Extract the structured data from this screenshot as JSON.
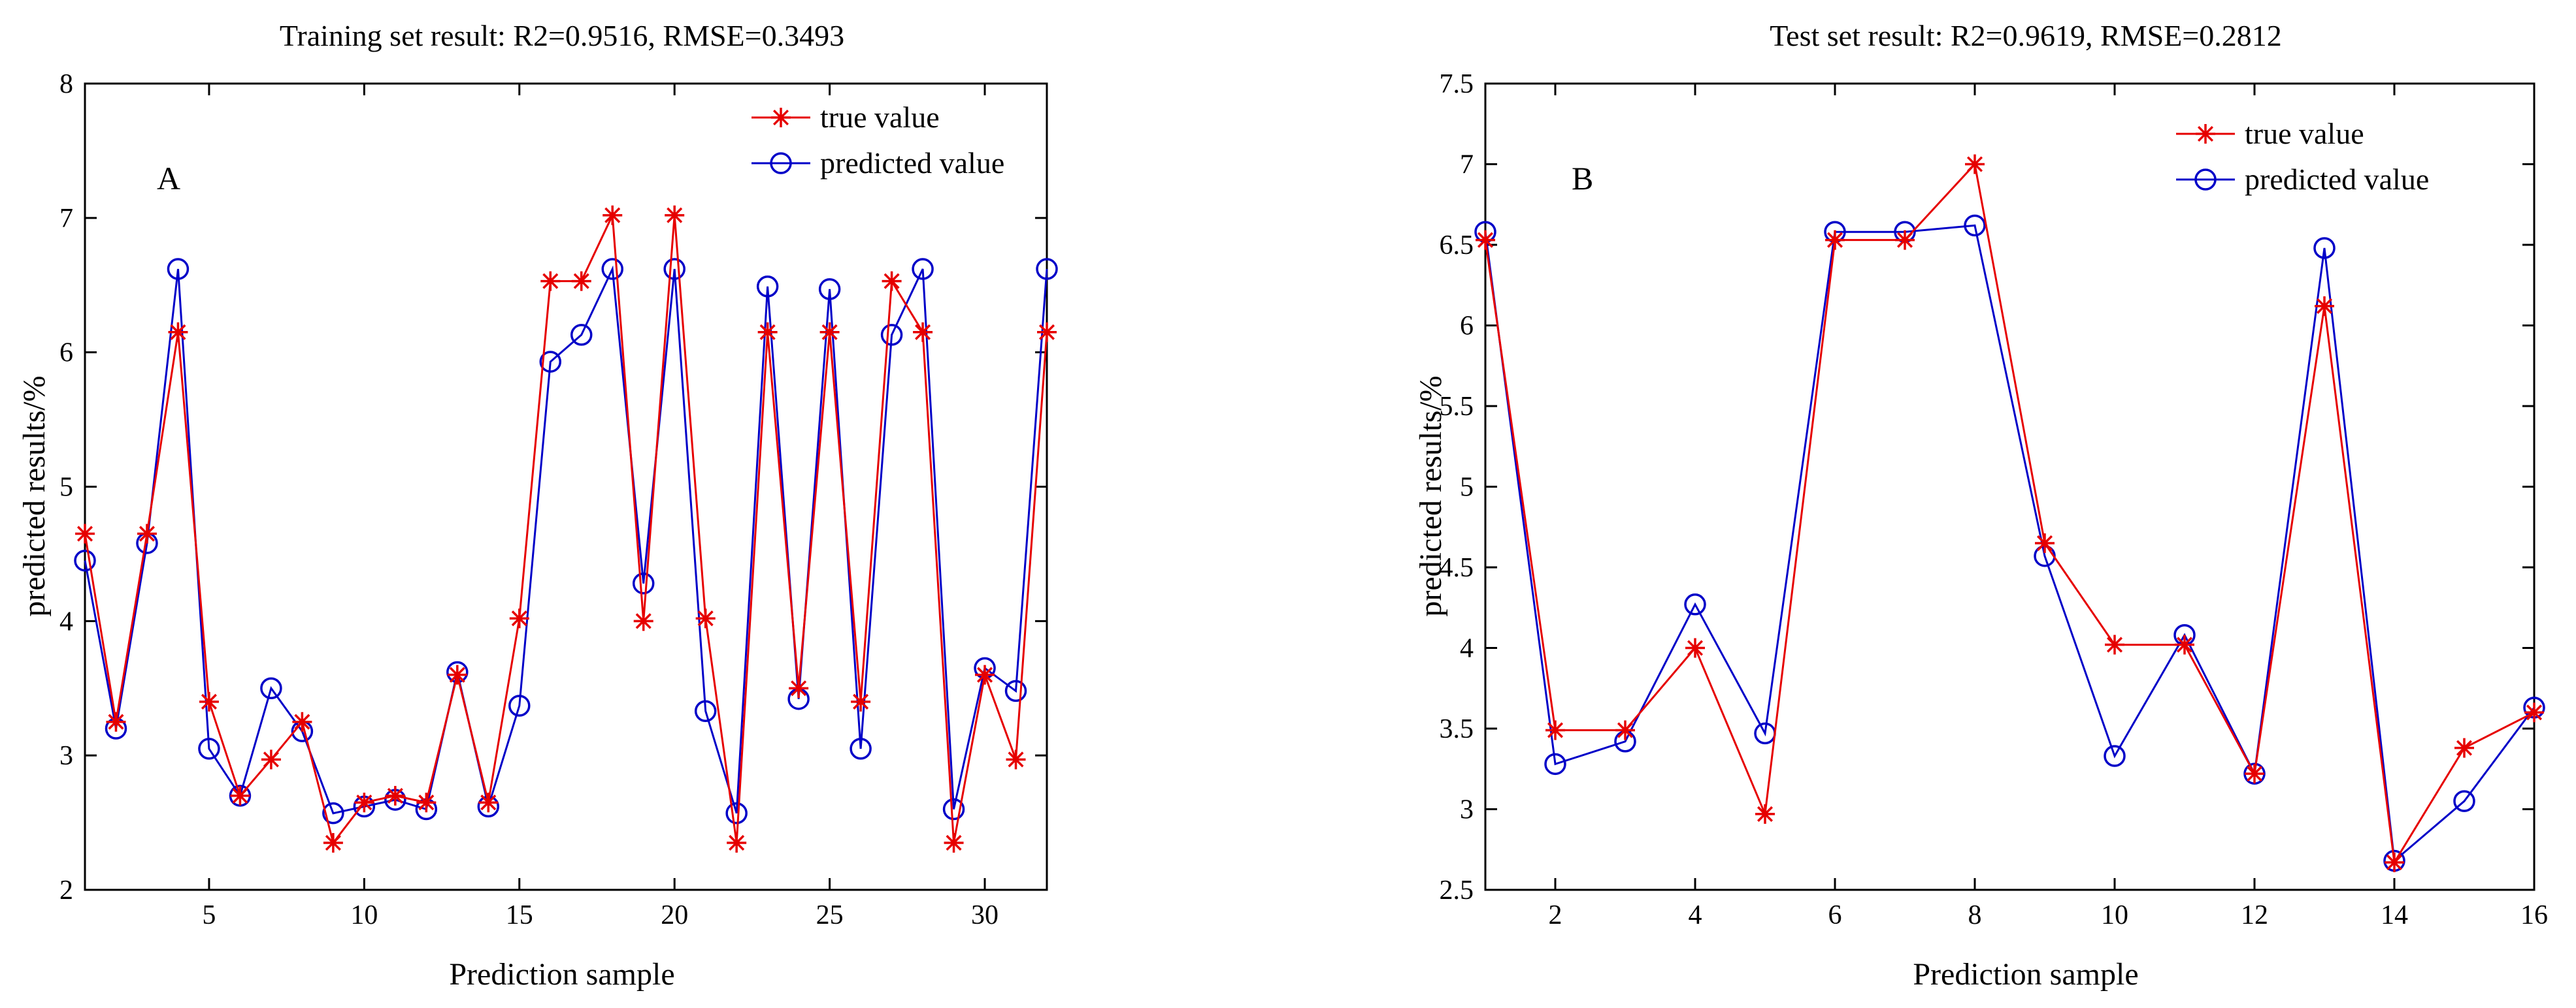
{
  "colors": {
    "true": "#e60000",
    "predicted": "#0000c8",
    "axis": "#000000"
  },
  "chart_data": [
    {
      "type": "line",
      "panel_letter": "A",
      "title": "Training set result: R2=0.9516, RMSE=0.3493",
      "xlabel": "Prediction sample",
      "ylabel": "predicted results/%",
      "xlim": [
        1,
        32
      ],
      "ylim": [
        2,
        8
      ],
      "xticks": [
        5,
        10,
        15,
        20,
        25,
        30
      ],
      "xtick_labels": [
        "5",
        "10",
        "15",
        "20",
        "25",
        "30"
      ],
      "yticks": [
        2,
        3,
        4,
        5,
        6,
        7,
        8
      ],
      "ytick_labels": [
        "2",
        "3",
        "4",
        "5",
        "6",
        "7",
        "8"
      ],
      "legend": {
        "position": "top-right",
        "entries": [
          "true value",
          "predicted value"
        ]
      },
      "x": [
        1,
        2,
        3,
        4,
        5,
        6,
        7,
        8,
        9,
        10,
        11,
        12,
        13,
        14,
        15,
        16,
        17,
        18,
        19,
        20,
        21,
        22,
        23,
        24,
        25,
        26,
        27,
        28,
        29,
        30,
        31,
        32
      ],
      "series": [
        {
          "name": "true value",
          "marker": "star",
          "values": [
            4.65,
            3.25,
            4.65,
            6.15,
            3.4,
            2.7,
            2.97,
            3.25,
            2.35,
            2.65,
            2.7,
            2.65,
            3.6,
            2.65,
            4.02,
            6.53,
            6.53,
            7.02,
            4.0,
            7.02,
            4.02,
            2.35,
            6.15,
            3.5,
            6.15,
            3.4,
            6.53,
            6.15,
            2.35,
            3.6,
            2.97,
            6.15
          ]
        },
        {
          "name": "predicted value",
          "marker": "circle",
          "values": [
            4.45,
            3.2,
            4.58,
            6.62,
            3.05,
            2.7,
            3.5,
            3.18,
            2.57,
            2.62,
            2.67,
            2.6,
            3.62,
            2.62,
            3.37,
            5.93,
            6.13,
            6.62,
            4.28,
            6.62,
            3.33,
            2.57,
            6.49,
            3.42,
            6.47,
            3.05,
            6.13,
            6.62,
            2.6,
            3.65,
            3.48,
            6.62
          ]
        }
      ]
    },
    {
      "type": "line",
      "panel_letter": "B",
      "title": "Test set result: R2=0.9619, RMSE=0.2812",
      "xlabel": "Prediction sample",
      "ylabel": "predicted results/%",
      "xlim": [
        1,
        16
      ],
      "ylim": [
        2.5,
        7.5
      ],
      "xticks": [
        2,
        4,
        6,
        8,
        10,
        12,
        14,
        16
      ],
      "xtick_labels": [
        "2",
        "4",
        "6",
        "8",
        "10",
        "12",
        "14",
        "16"
      ],
      "yticks": [
        2.5,
        3,
        3.5,
        4,
        4.5,
        5,
        5.5,
        6,
        6.5,
        7,
        7.5
      ],
      "ytick_labels": [
        "2.5",
        "3",
        "3.5",
        "4",
        "4.5",
        "5",
        "5.5",
        "6",
        "6.5",
        "7",
        "7.5"
      ],
      "legend": {
        "position": "top-right",
        "entries": [
          "true value",
          "predicted value"
        ]
      },
      "x": [
        1,
        2,
        3,
        4,
        5,
        6,
        7,
        8,
        9,
        10,
        11,
        12,
        13,
        14,
        15,
        16
      ],
      "series": [
        {
          "name": "true value",
          "marker": "star",
          "values": [
            6.53,
            3.49,
            3.49,
            4.0,
            2.97,
            6.53,
            6.53,
            7.0,
            4.65,
            4.02,
            4.02,
            3.22,
            6.12,
            2.67,
            3.38,
            3.6
          ]
        },
        {
          "name": "predicted value",
          "marker": "circle",
          "values": [
            6.58,
            3.28,
            3.42,
            4.27,
            3.47,
            6.58,
            6.58,
            6.62,
            4.57,
            3.33,
            4.08,
            3.22,
            6.48,
            2.68,
            3.05,
            3.63
          ]
        }
      ]
    }
  ]
}
